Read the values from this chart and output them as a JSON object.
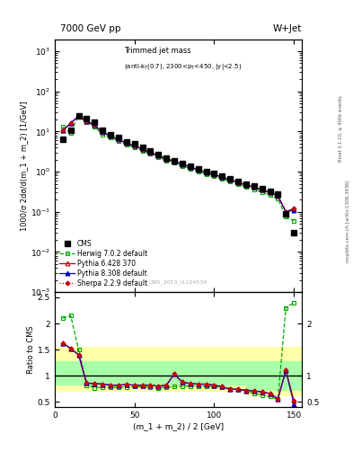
{
  "title_top": "7000 GeV pp",
  "title_right": "W+Jet",
  "plot_title": "Trimmed jet mass",
  "plot_subtitle": "(anti-k_{T}(0.7), 2300<p_{T}<450, |y|<2.5)",
  "ylabel_main": "1000/σ 2dσ/d(m_1 + m_2) [1/GeV]",
  "ylabel_ratio": "Ratio to CMS",
  "xlabel": "(m_1 + m_2) / 2 [GeV]",
  "watermark": "CMS_2013_I1224539",
  "rivet_label": "Rivet 3.1.10, ≥ 400k events",
  "mcplots_label": "mcplots.cern.ch [arXiv:1306.3436]",
  "xlim": [
    0,
    155
  ],
  "ylim_main": [
    0.001,
    2000
  ],
  "ylim_ratio": [
    0.4,
    2.6
  ],
  "cms_x": [
    5,
    10,
    15,
    20,
    25,
    30,
    35,
    40,
    45,
    50,
    55,
    60,
    65,
    70,
    75,
    80,
    85,
    90,
    95,
    100,
    105,
    110,
    115,
    120,
    125,
    130,
    135,
    140,
    145,
    150
  ],
  "cms_y": [
    6.5,
    10.5,
    25.0,
    21.0,
    17.0,
    10.5,
    8.5,
    7.0,
    5.5,
    5.0,
    4.0,
    3.2,
    2.7,
    2.2,
    1.9,
    1.6,
    1.35,
    1.15,
    1.0,
    0.9,
    0.78,
    0.68,
    0.58,
    0.5,
    0.44,
    0.38,
    0.32,
    0.28,
    0.09,
    0.03
  ],
  "herwig_x": [
    5,
    10,
    15,
    20,
    25,
    30,
    35,
    40,
    45,
    50,
    55,
    60,
    65,
    70,
    75,
    80,
    85,
    90,
    95,
    100,
    105,
    110,
    115,
    120,
    125,
    130,
    135,
    140,
    145,
    150
  ],
  "herwig_y": [
    13.0,
    9.0,
    26.0,
    17.0,
    13.0,
    8.5,
    7.0,
    5.8,
    4.7,
    4.0,
    3.3,
    2.8,
    2.3,
    1.9,
    1.65,
    1.4,
    1.18,
    1.0,
    0.88,
    0.78,
    0.67,
    0.57,
    0.49,
    0.42,
    0.36,
    0.31,
    0.26,
    0.21,
    0.075,
    0.06
  ],
  "pythia6_x": [
    5,
    10,
    15,
    20,
    25,
    30,
    35,
    40,
    45,
    50,
    55,
    60,
    65,
    70,
    75,
    80,
    85,
    90,
    95,
    100,
    105,
    110,
    115,
    120,
    125,
    130,
    135,
    140,
    145,
    150
  ],
  "pythia6_y": [
    10.5,
    16.0,
    24.5,
    18.0,
    14.5,
    9.5,
    7.8,
    6.3,
    5.1,
    4.4,
    3.6,
    3.0,
    2.5,
    2.1,
    1.8,
    1.55,
    1.3,
    1.1,
    0.97,
    0.86,
    0.73,
    0.63,
    0.54,
    0.47,
    0.41,
    0.35,
    0.3,
    0.25,
    0.1,
    0.12
  ],
  "pythia8_x": [
    5,
    10,
    15,
    20,
    25,
    30,
    35,
    40,
    45,
    50,
    55,
    60,
    65,
    70,
    75,
    80,
    85,
    90,
    95,
    100,
    105,
    110,
    115,
    120,
    125,
    130,
    135,
    140,
    145,
    150
  ],
  "pythia8_y": [
    10.5,
    16.0,
    24.5,
    18.0,
    14.5,
    9.5,
    7.8,
    6.3,
    5.1,
    4.4,
    3.6,
    3.0,
    2.5,
    2.1,
    1.8,
    1.55,
    1.3,
    1.1,
    0.97,
    0.86,
    0.73,
    0.63,
    0.54,
    0.47,
    0.41,
    0.35,
    0.3,
    0.25,
    0.1,
    0.11
  ],
  "sherpa_x": [
    5,
    10,
    15,
    20,
    25,
    30,
    35,
    40,
    45,
    50,
    55,
    60,
    65,
    70,
    75,
    80,
    85,
    90,
    95,
    100,
    105,
    110,
    115,
    120,
    125,
    130,
    135,
    140,
    145,
    150
  ],
  "sherpa_y": [
    10.5,
    16.0,
    24.5,
    18.0,
    14.5,
    9.5,
    7.8,
    6.3,
    5.1,
    4.4,
    3.6,
    3.0,
    2.5,
    2.1,
    1.8,
    1.55,
    1.3,
    1.1,
    0.97,
    0.86,
    0.73,
    0.63,
    0.54,
    0.47,
    0.41,
    0.35,
    0.3,
    0.25,
    0.1,
    0.12
  ],
  "ratio_herwig_x": [
    5,
    10,
    15,
    20,
    25,
    30,
    35,
    40,
    45,
    50,
    55,
    60,
    65,
    70,
    75,
    80,
    85,
    90,
    95,
    100,
    105,
    110,
    115,
    120,
    125,
    130,
    135,
    140,
    145,
    150
  ],
  "ratio_herwig_y": [
    2.1,
    2.15,
    1.5,
    0.82,
    0.77,
    0.78,
    0.78,
    0.78,
    0.78,
    0.79,
    0.79,
    0.78,
    0.77,
    0.78,
    0.79,
    0.8,
    0.8,
    0.8,
    0.8,
    0.79,
    0.78,
    0.75,
    0.73,
    0.71,
    0.66,
    0.63,
    0.6,
    0.55,
    2.3,
    2.4
  ],
  "ratio_pythia6_x": [
    5,
    10,
    15,
    20,
    25,
    30,
    35,
    40,
    45,
    50,
    55,
    60,
    65,
    70,
    75,
    80,
    85,
    90,
    95,
    100,
    105,
    110,
    115,
    120,
    125,
    130,
    135,
    140,
    145,
    150
  ],
  "ratio_pythia6_y": [
    1.63,
    1.52,
    1.4,
    0.86,
    0.85,
    0.84,
    0.82,
    0.82,
    0.83,
    0.82,
    0.82,
    0.82,
    0.8,
    0.82,
    1.03,
    0.88,
    0.85,
    0.84,
    0.84,
    0.82,
    0.79,
    0.74,
    0.74,
    0.72,
    0.71,
    0.69,
    0.66,
    0.56,
    1.1,
    0.52
  ],
  "ratio_pythia8_x": [
    5,
    10,
    15,
    20,
    25,
    30,
    35,
    40,
    45,
    50,
    55,
    60,
    65,
    70,
    75,
    80,
    85,
    90,
    95,
    100,
    105,
    110,
    115,
    120,
    125,
    130,
    135,
    140,
    145,
    150
  ],
  "ratio_pythia8_y": [
    1.63,
    1.52,
    1.4,
    0.86,
    0.85,
    0.84,
    0.82,
    0.82,
    0.83,
    0.82,
    0.82,
    0.82,
    0.8,
    0.82,
    1.03,
    0.88,
    0.85,
    0.84,
    0.84,
    0.82,
    0.79,
    0.74,
    0.74,
    0.72,
    0.71,
    0.69,
    0.66,
    0.56,
    1.1,
    0.46
  ],
  "ratio_sherpa_x": [
    5,
    10,
    15,
    20,
    25,
    30,
    35,
    40,
    45,
    50,
    55,
    60,
    65,
    70,
    75,
    80,
    85,
    90,
    95,
    100,
    105,
    110,
    115,
    120,
    125,
    130,
    135,
    140,
    145,
    150
  ],
  "ratio_sherpa_y": [
    1.63,
    1.52,
    1.4,
    0.86,
    0.85,
    0.84,
    0.82,
    0.82,
    0.83,
    0.82,
    0.82,
    0.82,
    0.8,
    0.82,
    1.03,
    0.88,
    0.85,
    0.84,
    0.84,
    0.82,
    0.79,
    0.74,
    0.74,
    0.72,
    0.71,
    0.69,
    0.66,
    0.56,
    1.1,
    0.52
  ],
  "band_yellow_edges": [
    0,
    30,
    60,
    90,
    120,
    155
  ],
  "band_yellow_low": [
    0.72,
    0.72,
    0.72,
    0.72,
    0.62,
    0.55
  ],
  "band_yellow_high": [
    1.55,
    1.55,
    1.55,
    1.55,
    1.55,
    1.55
  ],
  "band_green_edges": [
    0,
    30,
    60,
    90,
    120,
    155
  ],
  "band_green_low": [
    0.83,
    0.83,
    0.83,
    0.83,
    0.73,
    0.65
  ],
  "band_green_high": [
    1.28,
    1.28,
    1.28,
    1.28,
    1.28,
    1.28
  ],
  "color_cms": "black",
  "color_herwig": "#00aa00",
  "color_pythia6": "#cc0000",
  "color_pythia8": "#0000cc",
  "color_sherpa": "#cc0000",
  "color_band_yellow": "#ffffaa",
  "color_band_green": "#aaffaa"
}
